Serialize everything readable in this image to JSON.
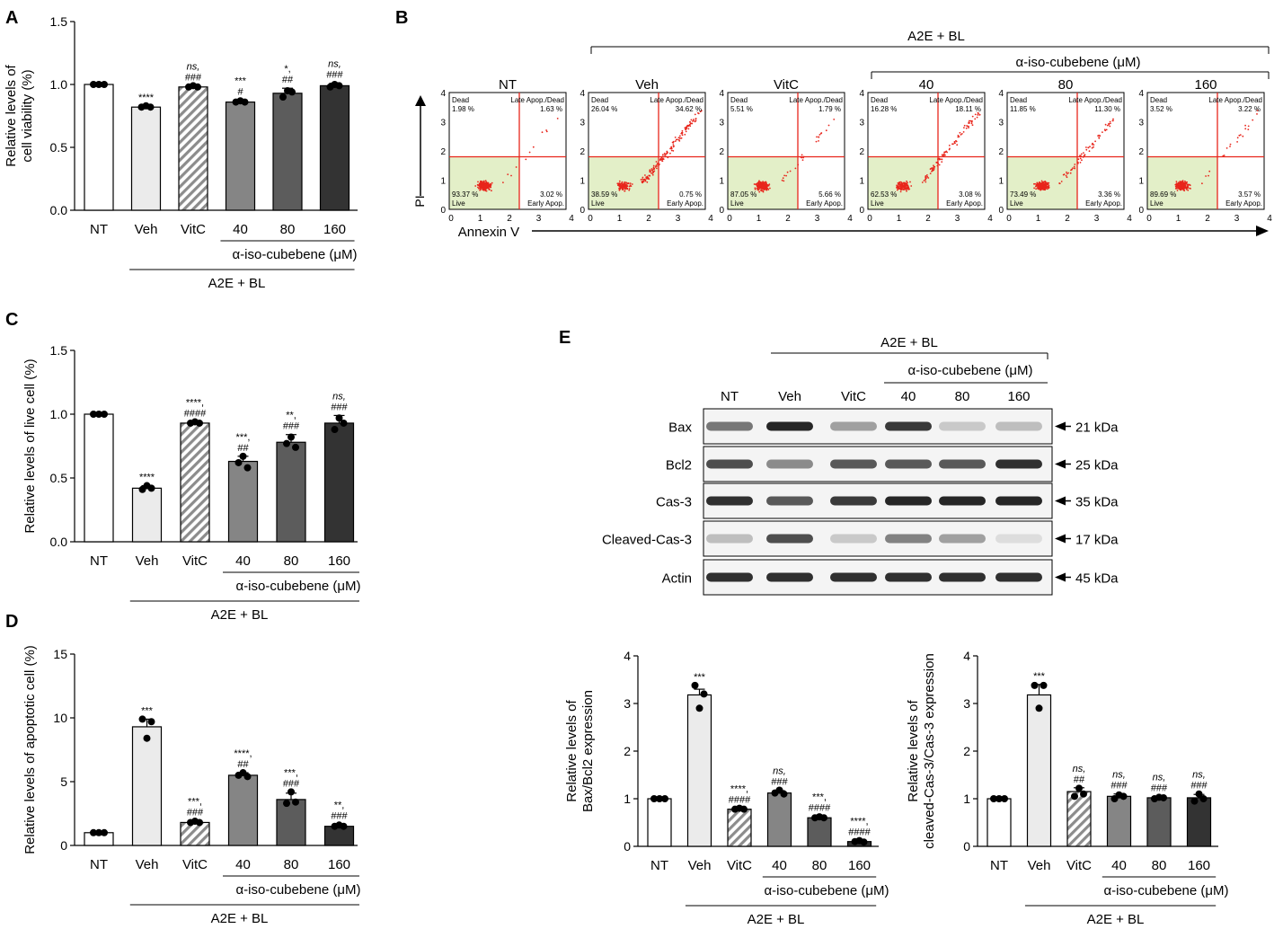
{
  "colors": {
    "nt": "#ffffff",
    "veh": "#ebebeb",
    "vitc_hatch": "#8c8c8c",
    "c40": "#858585",
    "c80": "#5c5c5c",
    "c160": "#333333",
    "flow_dots": "#e8261c",
    "flow_live_fill": "#e3efc8",
    "gate_line": "#e8261c"
  },
  "panel_labels": {
    "a": "A",
    "b": "B",
    "c": "C",
    "d": "D",
    "e": "E"
  },
  "common": {
    "categories": [
      "NT",
      "Veh",
      "VitC",
      "40",
      "80",
      "160"
    ],
    "treatment_label": "A2E + BL",
    "compound_label": "α-iso-cubebene (μM)"
  },
  "flow": {
    "xlabel": "Annexin V",
    "ylabel": "PI",
    "quadrant_labels": {
      "dead": "Dead",
      "late": "Late Apop./Dead",
      "live": "Live",
      "early": "Early Apop."
    },
    "ticks": [
      "0",
      "1",
      "2",
      "3",
      "4"
    ],
    "panels": [
      {
        "title": "NT",
        "dead": "1.98 %",
        "late": "1.63 %",
        "live": "93.37 %",
        "early": "3.02 %"
      },
      {
        "title": "Veh",
        "dead": "26.04 %",
        "late": "34.62 %",
        "live": "38.59 %",
        "early": "0.75 %"
      },
      {
        "title": "VitC",
        "dead": "5.51 %",
        "late": "1.79 %",
        "live": "87.05 %",
        "early": "5.66 %"
      },
      {
        "title": "40",
        "dead": "16.28 %",
        "late": "18.11 %",
        "live": "62.53 %",
        "early": "3.08 %"
      },
      {
        "title": "80",
        "dead": "11.85 %",
        "late": "11.30 %",
        "live": "73.49 %",
        "early": "3.36 %"
      },
      {
        "title": "160",
        "dead": "3.52 %",
        "late": "3.22 %",
        "live": "89.69 %",
        "early": "3.57 %"
      }
    ]
  },
  "western": {
    "rows": [
      {
        "name": "Bax",
        "kda": "21 kDa",
        "intensity": [
          0.55,
          0.95,
          0.35,
          0.85,
          0.15,
          0.2
        ]
      },
      {
        "name": "Bcl2",
        "kda": "25 kDa",
        "intensity": [
          0.75,
          0.45,
          0.7,
          0.7,
          0.7,
          0.9
        ]
      },
      {
        "name": "Cas-3",
        "kda": "35 kDa",
        "intensity": [
          0.9,
          0.7,
          0.85,
          0.95,
          0.95,
          0.95
        ]
      },
      {
        "name": "Cleaved-Cas-3",
        "kda": "17 kDa",
        "intensity": [
          0.2,
          0.75,
          0.15,
          0.5,
          0.35,
          0.05
        ]
      },
      {
        "name": "Actin",
        "kda": "45 kDa",
        "intensity": [
          0.9,
          0.9,
          0.9,
          0.9,
          0.9,
          0.9
        ]
      }
    ]
  },
  "chart_data": [
    {
      "id": "A",
      "type": "bar",
      "categories": [
        "NT",
        "Veh",
        "VitC",
        "40",
        "80",
        "160"
      ],
      "values": [
        1.0,
        0.82,
        0.98,
        0.86,
        0.93,
        0.99
      ],
      "errors": [
        0.005,
        0.01,
        0.01,
        0.015,
        0.04,
        0.02
      ],
      "points": [
        [
          1.0,
          1.0,
          1.0
        ],
        [
          0.82,
          0.83,
          0.82
        ],
        [
          0.98,
          0.99,
          0.98
        ],
        [
          0.86,
          0.87,
          0.86
        ],
        [
          0.9,
          0.95,
          0.94
        ],
        [
          0.98,
          1.0,
          0.99
        ]
      ],
      "ylabel": [
        "Relative levels of",
        "cell viability (%)"
      ],
      "ylim": [
        0,
        1.5
      ],
      "yticks": [
        0.0,
        0.5,
        1.0,
        1.5
      ],
      "ytick_labels": [
        "0.0",
        "0.5",
        "1.0",
        "1.5"
      ],
      "stars": [
        "",
        "****",
        "ns,",
        "***",
        "*,",
        "ns,"
      ],
      "hashes": [
        "",
        "",
        "###",
        "#",
        "##",
        "###"
      ]
    },
    {
      "id": "C",
      "type": "bar",
      "categories": [
        "NT",
        "Veh",
        "VitC",
        "40",
        "80",
        "160"
      ],
      "values": [
        1.0,
        0.42,
        0.93,
        0.63,
        0.78,
        0.93
      ],
      "errors": [
        0.005,
        0.02,
        0.01,
        0.04,
        0.06,
        0.06
      ],
      "points": [
        [
          1.0,
          1.0,
          1.0
        ],
        [
          0.41,
          0.44,
          0.42
        ],
        [
          0.93,
          0.94,
          0.93
        ],
        [
          0.62,
          0.67,
          0.58
        ],
        [
          0.77,
          0.82,
          0.74
        ],
        [
          0.88,
          0.97,
          0.93
        ]
      ],
      "ylabel": [
        "Relative levels of live cell (%)"
      ],
      "ylim": [
        0,
        1.5
      ],
      "yticks": [
        0.0,
        0.5,
        1.0,
        1.5
      ],
      "ytick_labels": [
        "0.0",
        "0.5",
        "1.0",
        "1.5"
      ],
      "stars": [
        "",
        "****",
        "****,",
        "***,",
        "**,",
        "ns,"
      ],
      "hashes": [
        "",
        "",
        "####",
        "##",
        "###",
        "###"
      ]
    },
    {
      "id": "D",
      "type": "bar",
      "categories": [
        "NT",
        "Veh",
        "VitC",
        "40",
        "80",
        "160"
      ],
      "values": [
        1.0,
        9.3,
        1.8,
        5.5,
        3.6,
        1.5
      ],
      "errors": [
        0.05,
        0.6,
        0.15,
        0.2,
        0.5,
        0.15
      ],
      "points": [
        [
          1.0,
          1.0,
          1.0
        ],
        [
          9.9,
          8.4,
          9.7
        ],
        [
          1.8,
          1.9,
          1.8
        ],
        [
          5.5,
          5.7,
          5.4
        ],
        [
          3.3,
          4.2,
          3.4
        ],
        [
          1.5,
          1.6,
          1.5
        ]
      ],
      "ylabel": [
        "Relative levels of apoptotic cell (%)"
      ],
      "ylim": [
        0,
        15
      ],
      "yticks": [
        0,
        5,
        10,
        15
      ],
      "ytick_labels": [
        "0",
        "5",
        "10",
        "15"
      ],
      "stars": [
        "",
        "***",
        "***,",
        "****,",
        "***,",
        "**,"
      ],
      "hashes": [
        "",
        "",
        "###",
        "##",
        "###",
        "###"
      ]
    },
    {
      "id": "E1",
      "type": "bar",
      "categories": [
        "NT",
        "Veh",
        "VitC",
        "40",
        "80",
        "160"
      ],
      "values": [
        1.0,
        3.18,
        0.78,
        1.12,
        0.6,
        0.1
      ],
      "errors": [
        0.01,
        0.12,
        0.02,
        0.05,
        0.03,
        0.02
      ],
      "points": [
        [
          1.0,
          1.0,
          1.0
        ],
        [
          3.38,
          2.9,
          3.2
        ],
        [
          0.78,
          0.8,
          0.78
        ],
        [
          1.12,
          1.18,
          1.1
        ],
        [
          0.6,
          0.62,
          0.6
        ],
        [
          0.1,
          0.12,
          0.09
        ]
      ],
      "ylabel": [
        "Relative levels of",
        "Bax/Bcl2 expression"
      ],
      "ylim": [
        0,
        4
      ],
      "yticks": [
        0,
        1,
        2,
        3,
        4
      ],
      "ytick_labels": [
        "0",
        "1",
        "2",
        "3",
        "4"
      ],
      "stars": [
        "",
        "***",
        "****,",
        "ns,",
        "***,",
        "****,"
      ],
      "hashes": [
        "",
        "",
        "####",
        "###",
        "####",
        "####"
      ]
    },
    {
      "id": "E2",
      "type": "bar",
      "categories": [
        "NT",
        "Veh",
        "VitC",
        "40",
        "80",
        "160"
      ],
      "values": [
        1.0,
        3.18,
        1.15,
        1.05,
        1.02,
        1.02
      ],
      "errors": [
        0.01,
        0.22,
        0.08,
        0.05,
        0.03,
        0.07
      ],
      "points": [
        [
          1.0,
          1.0,
          1.0
        ],
        [
          3.38,
          2.9,
          3.38
        ],
        [
          1.05,
          1.22,
          1.1
        ],
        [
          1.0,
          1.08,
          1.05
        ],
        [
          1.0,
          1.03,
          1.02
        ],
        [
          0.95,
          1.1,
          1.0
        ]
      ],
      "ylabel": [
        "Relative levels of",
        "cleaved-Cas-3/Cas-3 expression"
      ],
      "ylim": [
        0,
        4
      ],
      "yticks": [
        0,
        1,
        2,
        3,
        4
      ],
      "ytick_labels": [
        "0",
        "1",
        "2",
        "3",
        "4"
      ],
      "stars": [
        "",
        "***",
        "ns,",
        "ns,",
        "ns,",
        "ns,"
      ],
      "hashes": [
        "",
        "",
        "##",
        "###",
        "###",
        "###"
      ]
    }
  ]
}
